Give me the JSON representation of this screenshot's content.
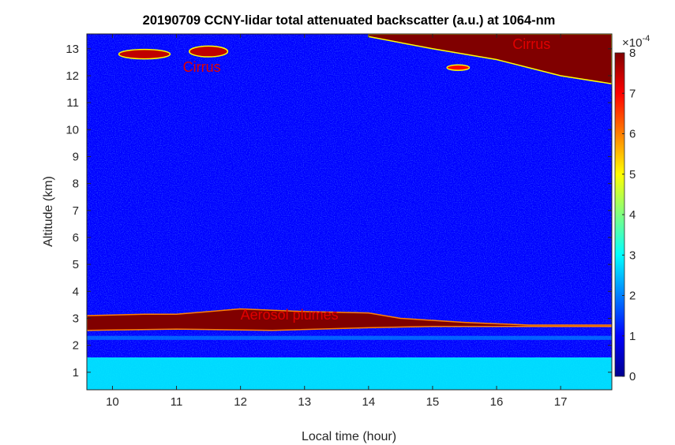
{
  "chart_data": {
    "type": "heatmap",
    "title": "20190709 CCNY-lidar total attenuated backscatter (a.u.) at 1064-nm",
    "xlabel": "Local time (hour)",
    "ylabel": "Altitude (km)",
    "xlim": [
      9.6,
      17.8
    ],
    "ylim": [
      0.35,
      13.55
    ],
    "x_ticks": [
      10,
      11,
      12,
      13,
      14,
      15,
      16,
      17
    ],
    "y_ticks": [
      1,
      2,
      3,
      4,
      5,
      6,
      7,
      8,
      9,
      10,
      11,
      12,
      13
    ],
    "colorbar": {
      "ticks": [
        0,
        1,
        2,
        3,
        4,
        5,
        6,
        7,
        8
      ],
      "range": [
        0,
        8
      ],
      "exponent_label": "×10",
      "exponent": "-4",
      "colormap": "jet"
    },
    "annotations": [
      {
        "text": "Cirrus",
        "x": 11.1,
        "y": 12.15,
        "color": "#e00000"
      },
      {
        "text": "Cirrus",
        "x": 16.25,
        "y": 13.0,
        "color": "#e00000"
      },
      {
        "text": "Aerosol plumes",
        "x": 12.0,
        "y": 2.95,
        "color": "#e00000"
      }
    ],
    "layers": {
      "background_value": 1.0,
      "boundary_layer": {
        "top_km": 1.55,
        "value": 3.0
      },
      "aerosol_plume": {
        "value": 8.0,
        "base_km": [
          [
            9.6,
            2.55
          ],
          [
            11.0,
            2.6
          ],
          [
            12.5,
            2.55
          ],
          [
            14.0,
            2.65
          ],
          [
            15.0,
            2.7
          ],
          [
            16.5,
            2.7
          ],
          [
            17.8,
            2.7
          ]
        ],
        "top_km": [
          [
            9.6,
            3.1
          ],
          [
            10.5,
            3.15
          ],
          [
            11.0,
            3.15
          ],
          [
            12.0,
            3.35
          ],
          [
            13.0,
            3.25
          ],
          [
            14.0,
            3.2
          ],
          [
            14.5,
            3.0
          ],
          [
            15.5,
            2.85
          ],
          [
            16.5,
            2.75
          ],
          [
            17.8,
            2.75
          ]
        ]
      },
      "cirrus_upper": {
        "value": 8.0,
        "base_km": [
          [
            14.0,
            13.45
          ],
          [
            15.0,
            13.0
          ],
          [
            16.0,
            12.6
          ],
          [
            17.0,
            12.0
          ],
          [
            17.8,
            11.7
          ]
        ]
      },
      "cirrus_patches": [
        {
          "x": 10.5,
          "y": 12.8,
          "w": 0.8,
          "h": 0.35,
          "value": 7.5
        },
        {
          "x": 11.5,
          "y": 12.9,
          "w": 0.6,
          "h": 0.4,
          "value": 7.5
        },
        {
          "x": 15.4,
          "y": 12.3,
          "w": 0.35,
          "h": 0.2,
          "value": 7.0
        }
      ]
    }
  }
}
